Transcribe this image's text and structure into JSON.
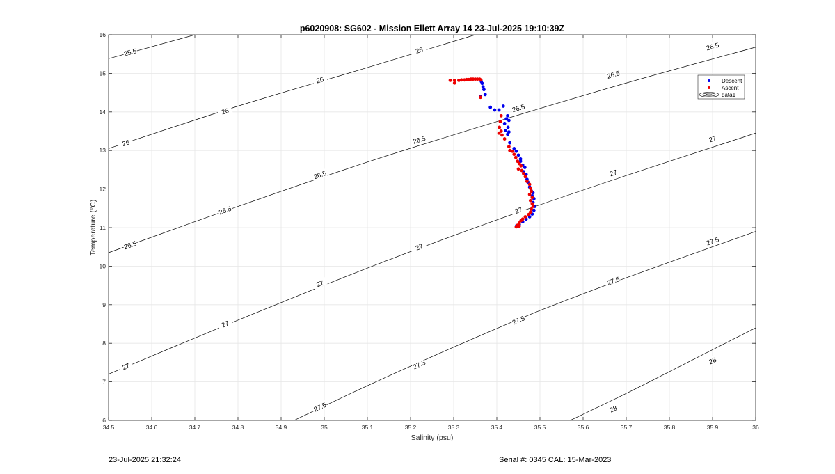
{
  "footer": {
    "timestamp": "23-Jul-2025 21:32:24",
    "serial": "Serial #: 0345  CAL: 15-Mar-2023"
  },
  "chart_data": {
    "type": "scatter",
    "title": "p6020908: SG602 - Mission Ellett Array 14 23-Jul-2025 19:10:39Z",
    "xlabel": "Salinity (psu)",
    "ylabel": "Temperature (°C)",
    "xlim": [
      34.5,
      36
    ],
    "ylim": [
      6,
      16
    ],
    "xticks": [
      "34.5",
      "34.6",
      "34.7",
      "34.8",
      "34.9",
      "35",
      "35.1",
      "35.2",
      "35.3",
      "35.4",
      "35.5",
      "35.6",
      "35.7",
      "35.8",
      "35.9",
      "36"
    ],
    "yticks": [
      "6",
      "7",
      "8",
      "9",
      "10",
      "11",
      "12",
      "13",
      "14",
      "15",
      "16"
    ],
    "grid": true,
    "legend": {
      "placement": "top-right",
      "entries": [
        "Descent",
        "Ascent",
        "data1"
      ]
    },
    "colors": {
      "descent": "#0000ee",
      "ascent": "#ee0000",
      "contour": "#000000",
      "grid": "#e6e6e6"
    },
    "contours": [
      {
        "level": "25.5",
        "points": [
          [
            34.5,
            15.38
          ],
          [
            34.7,
            16.0
          ]
        ],
        "labels": [
          [
            34.55,
            15.55
          ]
        ]
      },
      {
        "level": "26",
        "points": [
          [
            34.5,
            13.05
          ],
          [
            34.8,
            14.15
          ],
          [
            35.1,
            15.15
          ],
          [
            35.35,
            16.0
          ]
        ],
        "labels": [
          [
            34.54,
            13.2
          ],
          [
            34.77,
            14.02
          ],
          [
            34.99,
            14.83
          ],
          [
            35.22,
            15.6
          ]
        ]
      },
      {
        "level": "26.5",
        "points": [
          [
            34.5,
            10.35
          ],
          [
            34.8,
            11.55
          ],
          [
            35.1,
            12.7
          ],
          [
            35.4,
            13.75
          ],
          [
            35.7,
            14.75
          ],
          [
            36.0,
            15.68
          ]
        ],
        "labels": [
          [
            34.55,
            10.55
          ],
          [
            34.77,
            11.45
          ],
          [
            34.99,
            12.37
          ],
          [
            35.22,
            13.28
          ],
          [
            35.45,
            14.1
          ],
          [
            35.67,
            14.97
          ],
          [
            35.9,
            15.7
          ]
        ]
      },
      {
        "level": "27",
        "points": [
          [
            34.5,
            7.2
          ],
          [
            34.8,
            8.6
          ],
          [
            35.1,
            9.95
          ],
          [
            35.4,
            11.2
          ],
          [
            35.7,
            12.35
          ],
          [
            36.0,
            13.45
          ]
        ],
        "labels": [
          [
            34.54,
            7.4
          ],
          [
            34.77,
            8.5
          ],
          [
            34.99,
            9.55
          ],
          [
            35.22,
            10.5
          ],
          [
            35.45,
            11.45
          ],
          [
            35.67,
            12.42
          ],
          [
            35.9,
            13.3
          ]
        ]
      },
      {
        "level": "27.5",
        "points": [
          [
            34.93,
            6.0
          ],
          [
            35.1,
            6.9
          ],
          [
            35.3,
            7.9
          ],
          [
            35.5,
            8.85
          ],
          [
            35.7,
            9.7
          ],
          [
            36.0,
            10.9
          ]
        ],
        "labels": [
          [
            34.99,
            6.35
          ],
          [
            35.22,
            7.45
          ],
          [
            35.45,
            8.6
          ],
          [
            35.67,
            9.62
          ],
          [
            35.9,
            10.65
          ]
        ]
      },
      {
        "level": "28",
        "points": [
          [
            35.57,
            6.0
          ],
          [
            35.7,
            6.7
          ],
          [
            35.85,
            7.55
          ],
          [
            36.0,
            8.4
          ]
        ],
        "labels": [
          [
            35.67,
            6.3
          ],
          [
            35.9,
            7.55
          ]
        ]
      }
    ],
    "series": [
      {
        "name": "Descent",
        "points": [
          [
            35.364,
            14.79
          ],
          [
            35.366,
            14.74
          ],
          [
            35.368,
            14.65
          ],
          [
            35.37,
            14.58
          ],
          [
            35.373,
            14.45
          ],
          [
            35.362,
            14.4
          ],
          [
            35.385,
            14.12
          ],
          [
            35.395,
            14.05
          ],
          [
            35.415,
            14.15
          ],
          [
            35.405,
            14.05
          ],
          [
            35.425,
            13.9
          ],
          [
            35.422,
            13.82
          ],
          [
            35.428,
            13.78
          ],
          [
            35.418,
            13.7
          ],
          [
            35.426,
            13.6
          ],
          [
            35.42,
            13.52
          ],
          [
            35.428,
            13.48
          ],
          [
            35.425,
            13.42
          ],
          [
            35.43,
            13.2
          ],
          [
            35.44,
            13.05
          ],
          [
            35.445,
            12.98
          ],
          [
            35.45,
            12.88
          ],
          [
            35.455,
            12.78
          ],
          [
            35.455,
            12.72
          ],
          [
            35.46,
            12.62
          ],
          [
            35.465,
            12.56
          ],
          [
            35.462,
            12.45
          ],
          [
            35.468,
            12.38
          ],
          [
            35.47,
            12.25
          ],
          [
            35.472,
            12.18
          ],
          [
            35.476,
            12.05
          ],
          [
            35.48,
            11.95
          ],
          [
            35.484,
            11.9
          ],
          [
            35.482,
            11.82
          ],
          [
            35.486,
            11.75
          ],
          [
            35.484,
            11.65
          ],
          [
            35.488,
            11.55
          ],
          [
            35.486,
            11.45
          ],
          [
            35.482,
            11.35
          ],
          [
            35.476,
            11.28
          ],
          [
            35.468,
            11.22
          ],
          [
            35.46,
            11.15
          ],
          [
            35.452,
            11.08
          ],
          [
            35.446,
            11.05
          ]
        ]
      },
      {
        "name": "Ascent",
        "points": [
          [
            35.292,
            14.82
          ],
          [
            35.302,
            14.75
          ],
          [
            35.302,
            14.82
          ],
          [
            35.312,
            14.82
          ],
          [
            35.318,
            14.83
          ],
          [
            35.325,
            14.83
          ],
          [
            35.33,
            14.84
          ],
          [
            35.335,
            14.84
          ],
          [
            35.34,
            14.85
          ],
          [
            35.345,
            14.85
          ],
          [
            35.35,
            14.85
          ],
          [
            35.355,
            14.85
          ],
          [
            35.36,
            14.85
          ],
          [
            35.363,
            14.83
          ],
          [
            35.362,
            14.38
          ],
          [
            35.41,
            13.9
          ],
          [
            35.408,
            13.75
          ],
          [
            35.406,
            13.6
          ],
          [
            35.41,
            13.5
          ],
          [
            35.405,
            13.45
          ],
          [
            35.412,
            13.4
          ],
          [
            35.418,
            13.3
          ],
          [
            35.428,
            13.1
          ],
          [
            35.43,
            13.0
          ],
          [
            35.436,
            12.98
          ],
          [
            35.44,
            12.9
          ],
          [
            35.444,
            12.82
          ],
          [
            35.448,
            12.72
          ],
          [
            35.452,
            12.66
          ],
          [
            35.456,
            12.6
          ],
          [
            35.45,
            12.52
          ],
          [
            35.458,
            12.48
          ],
          [
            35.462,
            12.4
          ],
          [
            35.466,
            12.32
          ],
          [
            35.47,
            12.2
          ],
          [
            35.476,
            12.12
          ],
          [
            35.478,
            12.02
          ],
          [
            35.48,
            11.94
          ],
          [
            35.476,
            11.86
          ],
          [
            35.482,
            11.78
          ],
          [
            35.478,
            11.7
          ],
          [
            35.482,
            11.62
          ],
          [
            35.484,
            11.55
          ],
          [
            35.48,
            11.48
          ],
          [
            35.478,
            11.4
          ],
          [
            35.474,
            11.34
          ],
          [
            35.466,
            11.28
          ],
          [
            35.46,
            11.22
          ],
          [
            35.456,
            11.18
          ],
          [
            35.452,
            11.12
          ],
          [
            35.448,
            11.06
          ],
          [
            35.445,
            11.02
          ],
          [
            35.452,
            11.04
          ]
        ]
      }
    ]
  }
}
